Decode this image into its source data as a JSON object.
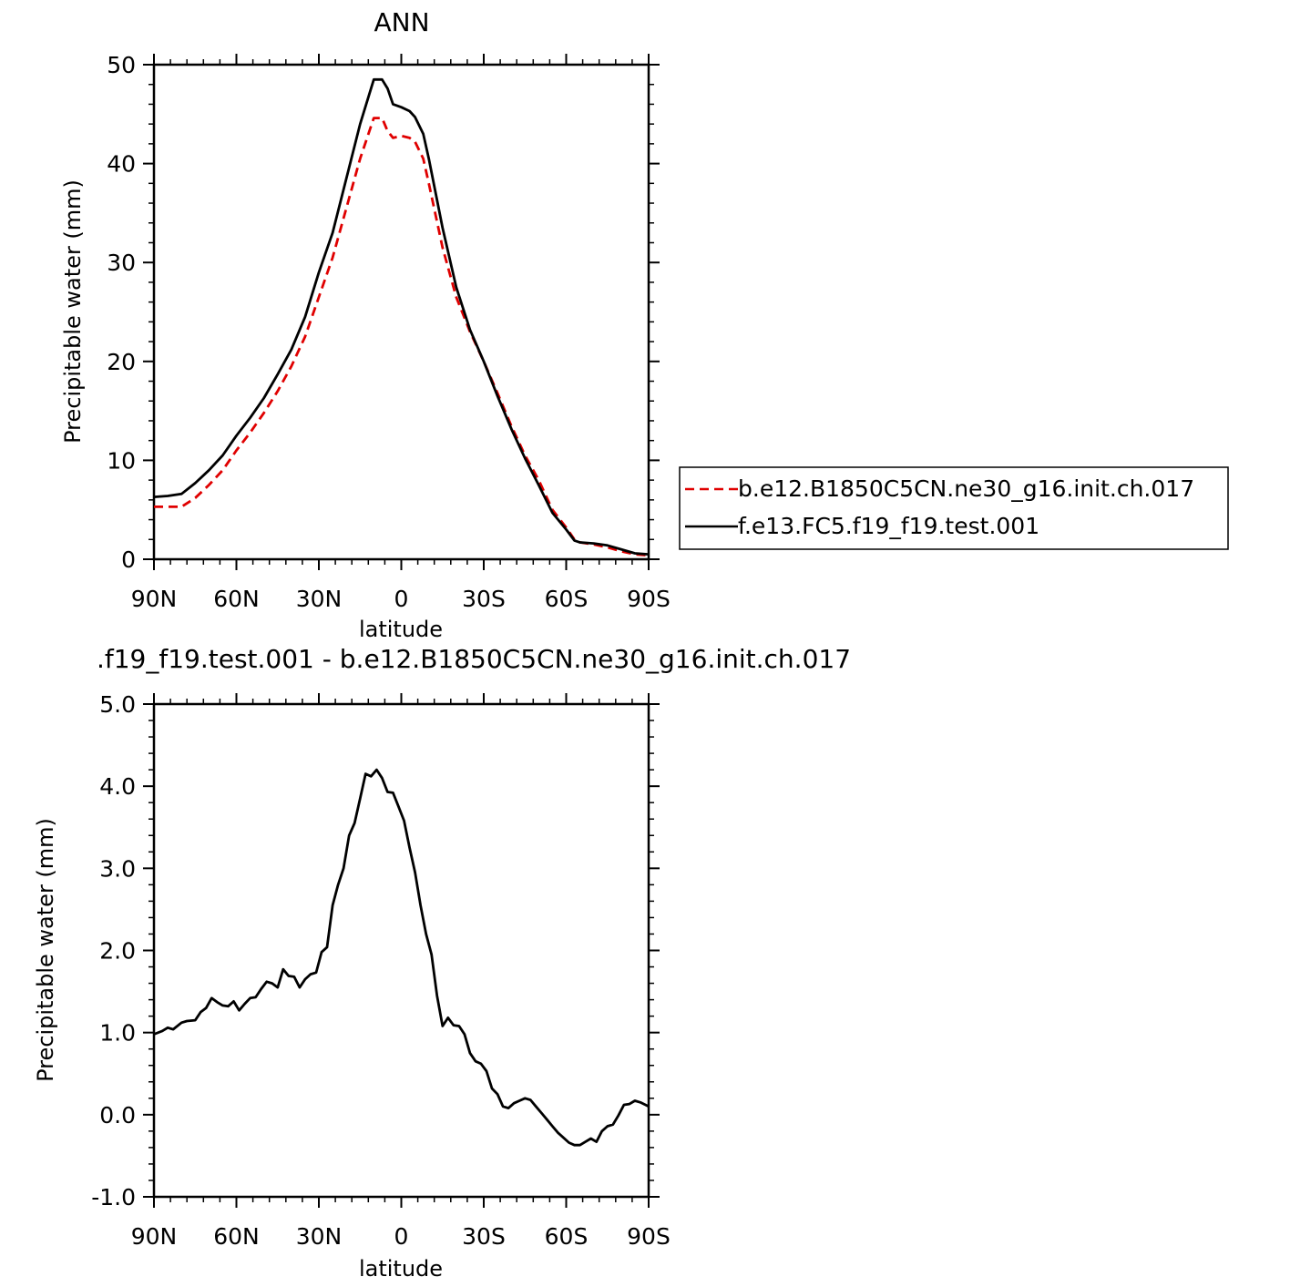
{
  "chart_data": [
    {
      "type": "line",
      "title": "ANN",
      "xlabel": "latitude",
      "ylabel": "Precipitable water (mm)",
      "xlim": [
        90,
        -90
      ],
      "ylim": [
        0,
        50
      ],
      "x_tick_values": [
        90,
        60,
        30,
        0,
        -30,
        -60,
        -90
      ],
      "x_tick_labels": [
        "90N",
        "60N",
        "30N",
        "0",
        "30S",
        "60S",
        "90S"
      ],
      "y_tick_values": [
        0,
        10,
        20,
        30,
        40,
        50
      ],
      "y_tick_labels": [
        "0",
        "10",
        "20",
        "30",
        "40",
        "50"
      ],
      "legend": {
        "placement": "right"
      },
      "series": [
        {
          "name": "b.e12.B1850C5CN.ne30_g16.init.ch.017",
          "color": "#e00000",
          "dash": "dashed",
          "x": [
            90,
            85,
            80,
            75,
            70,
            65,
            60,
            55,
            50,
            45,
            40,
            35,
            30,
            25,
            20,
            15,
            10,
            7,
            5,
            3,
            0,
            -3,
            -5,
            -8,
            -10,
            -15,
            -20,
            -25,
            -30,
            -35,
            -40,
            -45,
            -50,
            -55,
            -60,
            -63,
            -65,
            -70,
            -75,
            -80,
            -85,
            -90
          ],
          "y": [
            5.3,
            5.3,
            5.3,
            6.2,
            7.5,
            9.0,
            11.0,
            12.8,
            14.8,
            17.0,
            19.5,
            22.5,
            26.5,
            30.5,
            35.5,
            40.5,
            44.6,
            44.6,
            43.3,
            42.6,
            42.8,
            42.6,
            42.2,
            40.5,
            38.0,
            31.5,
            26.5,
            23.0,
            20.0,
            16.8,
            13.5,
            10.5,
            8.0,
            5.0,
            3.2,
            2.0,
            1.7,
            1.5,
            1.2,
            0.8,
            0.5,
            0.4
          ]
        },
        {
          "name": "f.e13.FC5.f19_f19.test.001",
          "color": "#000000",
          "dash": "solid",
          "x": [
            90,
            85,
            80,
            75,
            70,
            65,
            60,
            55,
            50,
            45,
            40,
            35,
            30,
            25,
            20,
            15,
            10,
            7,
            5,
            3,
            0,
            -3,
            -5,
            -8,
            -10,
            -15,
            -20,
            -25,
            -30,
            -35,
            -40,
            -45,
            -50,
            -55,
            -60,
            -63,
            -65,
            -70,
            -75,
            -80,
            -85,
            -90
          ],
          "y": [
            6.3,
            6.4,
            6.6,
            7.7,
            9.0,
            10.5,
            12.5,
            14.3,
            16.3,
            18.7,
            21.2,
            24.5,
            29.0,
            33.0,
            38.5,
            44.0,
            48.5,
            48.5,
            47.6,
            46.0,
            45.7,
            45.3,
            44.7,
            43.0,
            40.5,
            33.5,
            27.5,
            23.2,
            20.0,
            16.5,
            13.2,
            10.2,
            7.5,
            4.7,
            3.0,
            1.9,
            1.7,
            1.6,
            1.4,
            1.0,
            0.6,
            0.5
          ]
        }
      ]
    },
    {
      "type": "line",
      "title": ".f19_f19.test.001 - b.e12.B1850C5CN.ne30_g16.init.ch.017",
      "xlabel": "latitude",
      "ylabel": "Precipitable water (mm)",
      "xlim": [
        90,
        -90
      ],
      "ylim": [
        -1.0,
        5.0
      ],
      "x_tick_values": [
        90,
        60,
        30,
        0,
        -30,
        -60,
        -90
      ],
      "x_tick_labels": [
        "90N",
        "60N",
        "30N",
        "0",
        "30S",
        "60S",
        "90S"
      ],
      "y_tick_values": [
        -1.0,
        0.0,
        1.0,
        2.0,
        3.0,
        4.0,
        5.0
      ],
      "y_tick_labels": [
        "-1.0",
        "0.0",
        "1.0",
        "2.0",
        "3.0",
        "4.0",
        "5.0"
      ],
      "series": [
        {
          "color": "#000000",
          "dash": "solid",
          "x": [
            90,
            87,
            85,
            83,
            80,
            78,
            75,
            73,
            71,
            69,
            67,
            65,
            63,
            61,
            59,
            57,
            55,
            53,
            51,
            49,
            47,
            45,
            43,
            41,
            39,
            37,
            35,
            33,
            31,
            29,
            27,
            25,
            23,
            21,
            19,
            17,
            15,
            13,
            11,
            9,
            7,
            5,
            3,
            1,
            -1,
            -3,
            -5,
            -7,
            -9,
            -11,
            -13,
            -15,
            -17,
            -19,
            -21,
            -23,
            -25,
            -27,
            -29,
            -31,
            -33,
            -35,
            -37,
            -39,
            -41,
            -43,
            -45,
            -47,
            -49,
            -51,
            -53,
            -55,
            -57,
            -59,
            -61,
            -63,
            -65,
            -67,
            -69,
            -71,
            -73,
            -75,
            -77,
            -79,
            -81,
            -83,
            -85,
            -87,
            -90
          ],
          "y": [
            0.98,
            1.02,
            1.06,
            1.04,
            1.12,
            1.14,
            1.15,
            1.25,
            1.3,
            1.42,
            1.37,
            1.33,
            1.32,
            1.38,
            1.27,
            1.35,
            1.42,
            1.43,
            1.53,
            1.62,
            1.6,
            1.55,
            1.77,
            1.69,
            1.68,
            1.55,
            1.65,
            1.71,
            1.73,
            1.98,
            2.04,
            2.55,
            2.8,
            3.0,
            3.4,
            3.55,
            3.85,
            4.15,
            4.12,
            4.2,
            4.1,
            3.93,
            3.92,
            3.75,
            3.58,
            3.25,
            2.95,
            2.55,
            2.2,
            1.95,
            1.45,
            1.08,
            1.18,
            1.09,
            1.08,
            0.98,
            0.75,
            0.65,
            0.62,
            0.53,
            0.32,
            0.25,
            0.1,
            0.08,
            0.14,
            0.17,
            0.2,
            0.18,
            0.1,
            0.02,
            -0.06,
            -0.14,
            -0.22,
            -0.28,
            -0.34,
            -0.37,
            -0.37,
            -0.33,
            -0.29,
            -0.33,
            -0.2,
            -0.14,
            -0.12,
            -0.01,
            0.12,
            0.13,
            0.17,
            0.15,
            0.1
          ]
        }
      ]
    }
  ]
}
